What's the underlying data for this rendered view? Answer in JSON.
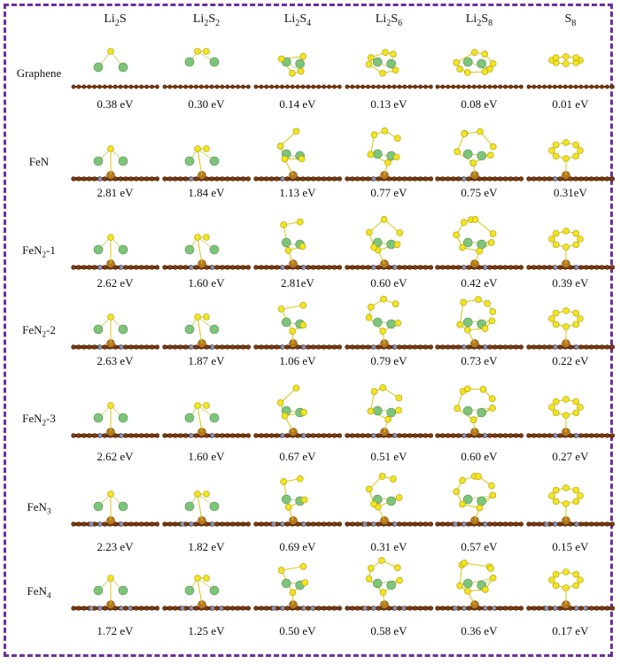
{
  "figure": {
    "border_color": "#6a2fa0",
    "colors": {
      "carbon": "#7a3b10",
      "sulfur": "#f2e421",
      "lithium": "#7ec47a",
      "iron": "#b77a1e",
      "nitrogen": "#8a8fb0"
    },
    "columns": [
      {
        "base": "Li",
        "sub1": "2",
        "mid": "S",
        "sub2": ""
      },
      {
        "base": "Li",
        "sub1": "2",
        "mid": "S",
        "sub2": "2"
      },
      {
        "base": "Li",
        "sub1": "2",
        "mid": "S",
        "sub2": "4"
      },
      {
        "base": "Li",
        "sub1": "2",
        "mid": "S",
        "sub2": "6"
      },
      {
        "base": "Li",
        "sub1": "2",
        "mid": "S",
        "sub2": "8"
      },
      {
        "base": "S",
        "sub1": "8",
        "mid": "",
        "sub2": ""
      }
    ],
    "rows": [
      {
        "label": "Graphene",
        "label_sub": "",
        "label_suffix": "",
        "energies": [
          "0.38 eV",
          "0.30 eV",
          "0.14 eV",
          "0.13 eV",
          "0.08 eV",
          "0.01 eV"
        ]
      },
      {
        "label": "FeN",
        "label_sub": "",
        "label_suffix": "",
        "energies": [
          "2.81 eV",
          "1.84 eV",
          "1.13 eV",
          "0.77 eV",
          "0.75 eV",
          "0.31eV"
        ]
      },
      {
        "label": "FeN",
        "label_sub": "2",
        "label_suffix": "-1",
        "energies": [
          "2.62 eV",
          "1.60 eV",
          "2.81eV",
          "0.60 eV",
          "0.42 eV",
          "0.39 eV"
        ]
      },
      {
        "label": "FeN",
        "label_sub": "2",
        "label_suffix": "-2",
        "energies": [
          "2.63 eV",
          "1.87 eV",
          "1.06 eV",
          "0.79 eV",
          "0.73 eV",
          "0.22 eV"
        ]
      },
      {
        "label": "FeN",
        "label_sub": "2",
        "label_suffix": "-3",
        "energies": [
          "2.62 eV",
          "1.60 eV",
          "0.67 eV",
          "0.51 eV",
          "0.60 eV",
          "0.27 eV"
        ]
      },
      {
        "label": "FeN",
        "label_sub": "3",
        "label_suffix": "",
        "energies": [
          "2.23 eV",
          "1.82 eV",
          "0.69 eV",
          "0.31 eV",
          "0.57 eV",
          "0.15 eV"
        ]
      },
      {
        "label": "FeN",
        "label_sub": "4",
        "label_suffix": "",
        "energies": [
          "1.72 eV",
          "1.25 eV",
          "0.50 eV",
          "0.58 eV",
          "0.36 eV",
          "0.17 eV"
        ]
      }
    ]
  }
}
